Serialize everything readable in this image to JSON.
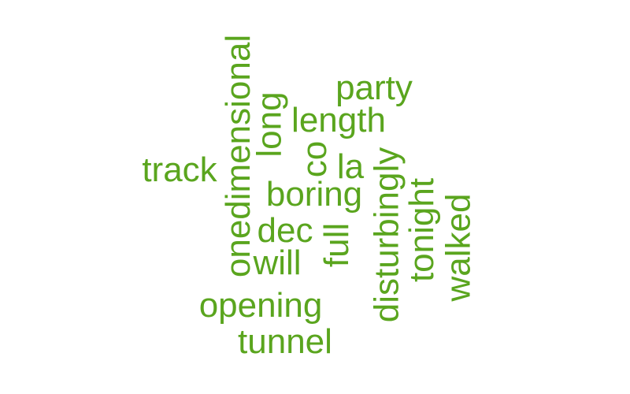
{
  "word_cloud": {
    "color": "#5aa51e",
    "words": [
      {
        "text": "onedimensional",
        "orientation": "vertical"
      },
      {
        "text": "party",
        "orientation": "horizontal"
      },
      {
        "text": "long",
        "orientation": "vertical"
      },
      {
        "text": "length",
        "orientation": "horizontal"
      },
      {
        "text": "track",
        "orientation": "horizontal"
      },
      {
        "text": "co",
        "orientation": "vertical"
      },
      {
        "text": "la",
        "orientation": "horizontal"
      },
      {
        "text": "boring",
        "orientation": "horizontal"
      },
      {
        "text": "disturbingly",
        "orientation": "vertical"
      },
      {
        "text": "tonight",
        "orientation": "vertical"
      },
      {
        "text": "walked",
        "orientation": "vertical"
      },
      {
        "text": "dec",
        "orientation": "horizontal"
      },
      {
        "text": "full",
        "orientation": "vertical"
      },
      {
        "text": "will",
        "orientation": "horizontal"
      },
      {
        "text": "opening",
        "orientation": "horizontal"
      },
      {
        "text": "tunnel",
        "orientation": "horizontal"
      }
    ]
  }
}
